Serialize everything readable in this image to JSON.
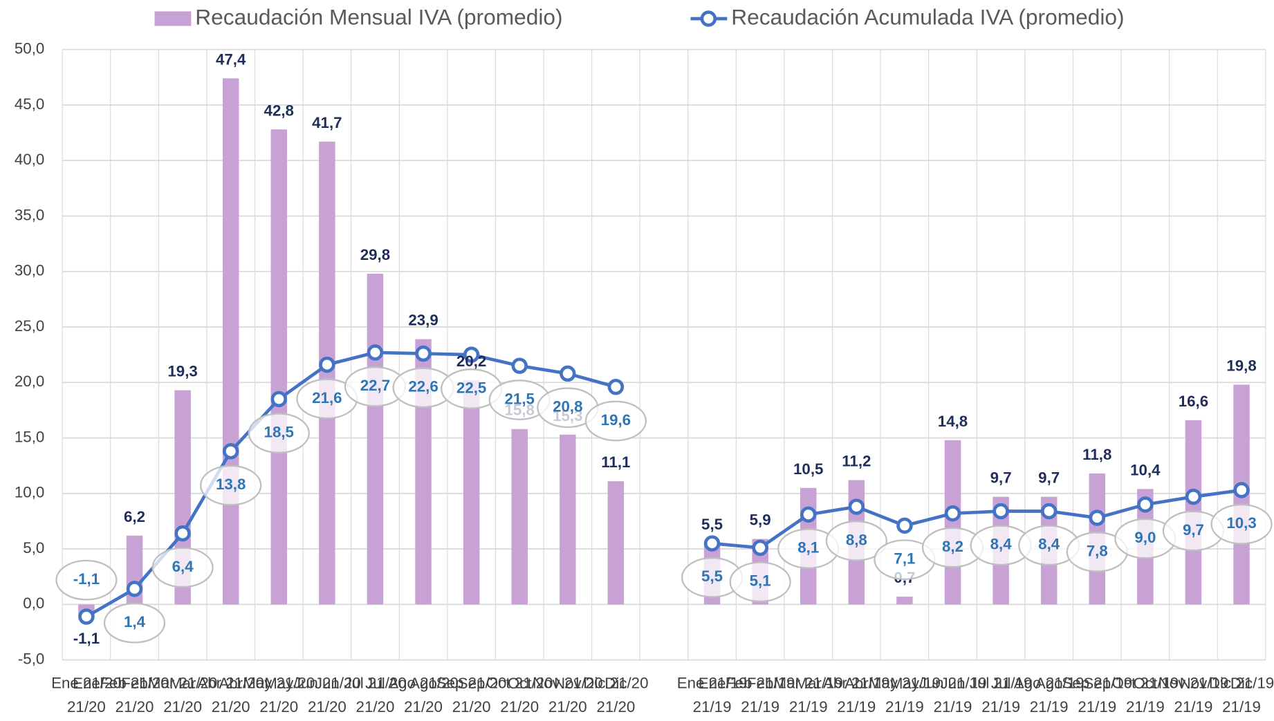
{
  "chart_data": {
    "type": "bar_line",
    "categories": [
      "Ene 21/20",
      "Feb 21/20",
      "Mar 21/20",
      "Abr 21/20",
      "May 21/20",
      "Jun 21/20",
      "Jul 21/20",
      "Ago 21/20",
      "Sep 21/20",
      "Oct 21/20",
      "Nov 21/20",
      "Dic 21/20",
      null,
      "Ene 21/19",
      "Feb 21/19",
      "Mar 21/19",
      "Abr 21/19",
      "May 21/19",
      "Jun 21/19",
      "Jul 21/19",
      "Ago 21/19",
      "Sep 21/19",
      "Oct 21/19",
      "Nov 21/19",
      "Dic 21/19"
    ],
    "series": [
      {
        "name": "Recaudación Mensual IVA (promedio)",
        "kind": "bar",
        "color": "#c8a2d4",
        "values": [
          -1.1,
          6.2,
          19.3,
          47.4,
          42.8,
          41.7,
          29.8,
          23.9,
          20.2,
          15.8,
          15.3,
          11.1,
          null,
          5.5,
          5.9,
          10.5,
          11.2,
          0.7,
          14.8,
          9.7,
          9.7,
          11.8,
          10.4,
          16.6,
          19.8
        ],
        "value_labels": [
          "-1,1",
          "6,2",
          "19,3",
          "47,4",
          "42,8",
          "41,7",
          "29,8",
          "23,9",
          "20,2",
          "15,8",
          "15,3",
          "11,1",
          null,
          "5,5",
          "5,9",
          "10,5",
          "11,2",
          "0,7",
          "14,8",
          "9,7",
          "9,7",
          "11,8",
          "10,4",
          "16,6",
          "19,8"
        ]
      },
      {
        "name": "Recaudación Acumulada IVA (promedio)",
        "kind": "line",
        "color": "#4472c4",
        "values": [
          -1.1,
          1.4,
          6.4,
          13.8,
          18.5,
          21.6,
          22.7,
          22.6,
          22.5,
          21.5,
          20.8,
          19.6,
          null,
          5.5,
          5.1,
          8.1,
          8.8,
          7.1,
          8.2,
          8.4,
          8.4,
          7.8,
          9.0,
          9.7,
          10.3
        ],
        "value_labels": [
          "-1,1",
          "1,4",
          "6,4",
          "13,8",
          "18,5",
          "21,6",
          "22,7",
          "22,6",
          "22,5",
          "21,5",
          "20,8",
          "19,6",
          null,
          "5,5",
          "5,1",
          "8,1",
          "8,8",
          "7,1",
          "8,2",
          "8,4",
          "8,4",
          "7,8",
          "9,0",
          "9,7",
          "10,3"
        ]
      }
    ],
    "ylim": [
      -5,
      50
    ],
    "yticks": [
      {
        "value": -5,
        "label": "-5,0"
      },
      {
        "value": 0,
        "label": "0,0"
      },
      {
        "value": 5,
        "label": "5,0"
      },
      {
        "value": 10,
        "label": "10,0"
      },
      {
        "value": 15,
        "label": "15,0"
      },
      {
        "value": 20,
        "label": "20,0"
      },
      {
        "value": 25,
        "label": "25,0"
      },
      {
        "value": 30,
        "label": "30,0"
      },
      {
        "value": 35,
        "label": "35,0"
      },
      {
        "value": 40,
        "label": "40,0"
      },
      {
        "value": 45,
        "label": "45,0"
      },
      {
        "value": 50,
        "label": "50,0"
      }
    ],
    "grid": true,
    "legend": "top"
  }
}
